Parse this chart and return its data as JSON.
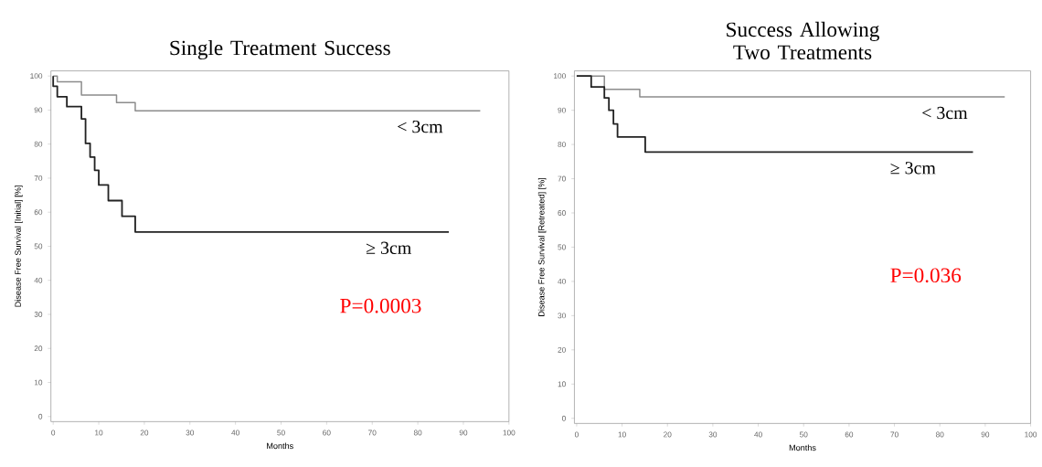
{
  "chart_data": [
    {
      "type": "step",
      "title": "Single Treatment Success",
      "xlabel": "Months",
      "ylabel": "Disease Free Survival [Initial] [%]",
      "xlim": [
        -0.5,
        100
      ],
      "ylim": [
        -1.5,
        101.5
      ],
      "xticks": [
        0,
        10,
        20,
        30,
        40,
        50,
        60,
        70,
        80,
        90,
        100
      ],
      "yticks": [
        0,
        10,
        20,
        30,
        40,
        50,
        60,
        70,
        80,
        90,
        100
      ],
      "series": [
        {
          "name": "< 3cm",
          "color": "#8c8c8c",
          "x": [
            0,
            0.9,
            6.2,
            13.9,
            18,
            93.7
          ],
          "values": [
            100,
            98.3,
            94.4,
            92.2,
            89.8,
            89.8
          ]
        },
        {
          "name": "≥ 3cm",
          "color": "#222222",
          "x": [
            0,
            0,
            0.9,
            3,
            6.2,
            7.1,
            8.1,
            9.1,
            10,
            12.1,
            15.1,
            18,
            86.8
          ],
          "values": [
            100,
            97,
            93.9,
            91,
            87.4,
            80.2,
            76.2,
            72.3,
            68,
            63.4,
            58.8,
            54.2,
            54.2
          ]
        }
      ],
      "annotations": [
        "P=0.0003"
      ]
    },
    {
      "type": "step",
      "title": "Success Allowing Two Treatments",
      "xlabel": "Months",
      "ylabel": "Disease Free Survival [Retreated] [%]",
      "xlim": [
        -0.5,
        100
      ],
      "ylim": [
        -1.5,
        101.5
      ],
      "xticks": [
        0,
        10,
        20,
        30,
        40,
        50,
        60,
        70,
        80,
        90,
        100
      ],
      "yticks": [
        0,
        10,
        20,
        30,
        40,
        50,
        60,
        70,
        80,
        90,
        100
      ],
      "series": [
        {
          "name": "< 3cm",
          "color": "#8c8c8c",
          "x": [
            0,
            6.1,
            13.9,
            94.3
          ],
          "values": [
            100,
            96.1,
            93.9,
            93.9
          ]
        },
        {
          "name": "≥ 3cm",
          "color": "#222222",
          "x": [
            0,
            3.2,
            6.1,
            7.1,
            8.1,
            9,
            15.1,
            87.3
          ],
          "values": [
            100,
            96.8,
            93.6,
            90,
            86,
            82.2,
            77.8,
            77.8
          ]
        }
      ],
      "annotations": [
        "P=0.036"
      ]
    }
  ]
}
